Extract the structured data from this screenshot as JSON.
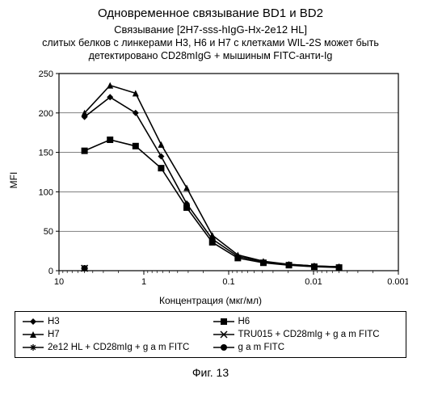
{
  "title": "Одновременное связывание BD1 и BD2",
  "subtitle_line1": "Связывание [2H7-sss-hIgG-Hx-2e12 HL]",
  "subtitle_line2": "слитых белков с линкерами H3, H6 и H7 с клетками WIL-2S может быть детектировано CD28mIgG + мышиным FITC-анти-Ig",
  "y_label": "MFI",
  "x_label": "Концентрация (мкг/мл)",
  "figure_caption": "Фиг. 13",
  "chart": {
    "type": "line",
    "x_log": true,
    "x_reverse": true,
    "xlim": [
      0.001,
      10
    ],
    "ylim": [
      0,
      250
    ],
    "ytick_step": 50,
    "x_ticks": [
      10,
      1,
      0.1,
      0.01,
      0.001
    ],
    "x_tick_labels": [
      "10",
      "1",
      "0.1",
      "0.01",
      "0.001"
    ],
    "plot_bg": "#ffffff",
    "axis_color": "#000000",
    "grid_color": "#000000",
    "tick_fontsize": 11,
    "line_width": 1.6,
    "marker_size": 5,
    "series": [
      {
        "name": "H3",
        "marker": "diamond",
        "color": "#000000",
        "x": [
          5,
          2.5,
          1.25,
          0.625,
          0.3125,
          0.156,
          0.078,
          0.039,
          0.0195,
          0.0098,
          0.005
        ],
        "y": [
          195,
          220,
          200,
          145,
          85,
          40,
          18,
          11,
          8,
          6,
          5
        ]
      },
      {
        "name": "H6",
        "marker": "square",
        "color": "#000000",
        "x": [
          5,
          2.5,
          1.25,
          0.625,
          0.3125,
          0.156,
          0.078,
          0.039,
          0.0195,
          0.0098,
          0.005
        ],
        "y": [
          152,
          166,
          158,
          130,
          80,
          36,
          16,
          10,
          7,
          5,
          4
        ]
      },
      {
        "name": "H7",
        "marker": "triangle",
        "color": "#000000",
        "x": [
          5,
          2.5,
          1.25,
          0.625,
          0.3125,
          0.156,
          0.078,
          0.039,
          0.0195,
          0.0098,
          0.005
        ],
        "y": [
          200,
          235,
          225,
          160,
          105,
          45,
          20,
          12,
          8,
          6,
          5
        ]
      },
      {
        "name": "TRU015 + CD28mIg + g a m FITC",
        "marker": "x",
        "color": "#000000",
        "x": [
          5
        ],
        "y": [
          3
        ]
      },
      {
        "name": "2e12 HL + CD28mIg + g a m FITC",
        "marker": "star",
        "color": "#000000",
        "x": [
          5
        ],
        "y": [
          3
        ]
      },
      {
        "name": "g a m FITC",
        "marker": "circle",
        "color": "#000000",
        "x": [
          5
        ],
        "y": [
          3
        ]
      }
    ]
  },
  "legend_layout": [
    [
      "H3",
      "H6"
    ],
    [
      "H7",
      "TRU015 + CD28mIg + g a m FITC"
    ],
    [
      "2e12 HL + CD28mIg + g a m FITC",
      "g a m FITC"
    ]
  ]
}
